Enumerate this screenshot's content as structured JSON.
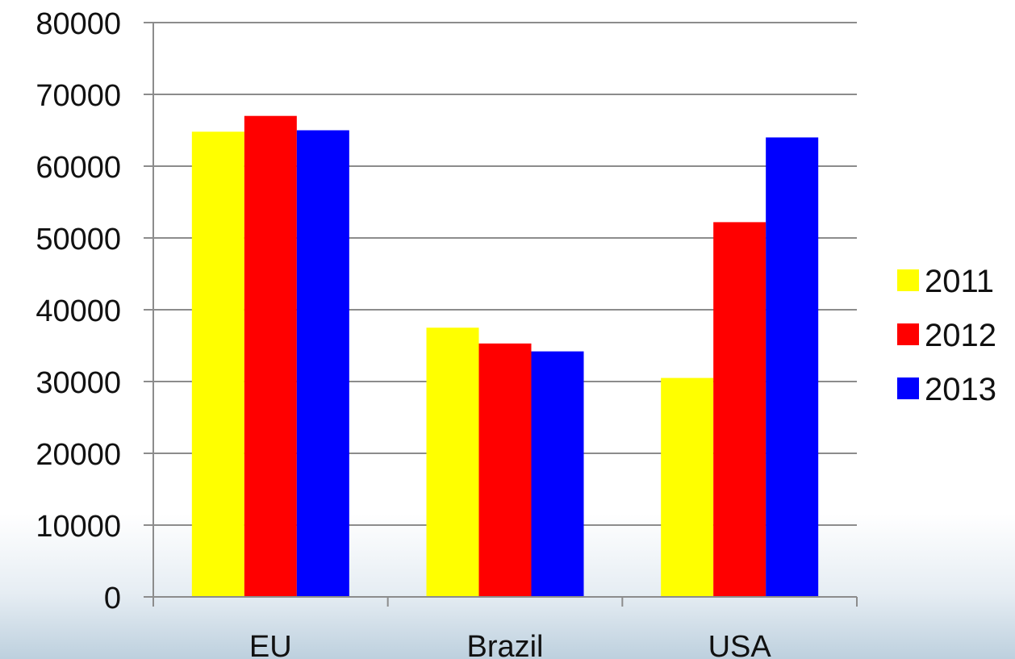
{
  "chart_data": {
    "type": "bar",
    "title": "",
    "xlabel": "",
    "ylabel": "",
    "categories": [
      "EU",
      "Brazil",
      "USA"
    ],
    "series": [
      {
        "name": "2011",
        "color": "#ffff00",
        "values": [
          64800,
          37500,
          30500
        ]
      },
      {
        "name": "2012",
        "color": "#ff0000",
        "values": [
          67000,
          35300,
          52200
        ]
      },
      {
        "name": "2013",
        "color": "#0000ff",
        "values": [
          65000,
          34200,
          64000
        ]
      }
    ],
    "ylim": [
      0,
      80000
    ],
    "yticks": [
      "0",
      "10000",
      "20000",
      "30000",
      "40000",
      "50000",
      "60000",
      "70000",
      "80000"
    ],
    "grid": true,
    "legend": "right"
  }
}
